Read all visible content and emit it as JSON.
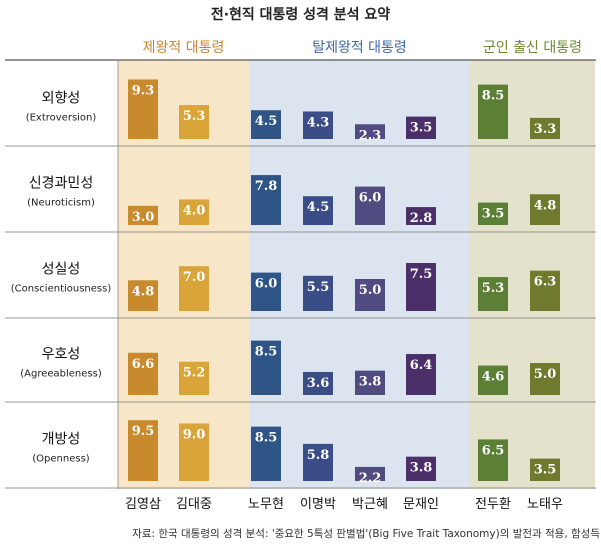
{
  "title": "전·현직 대통령 성격 분석 요약",
  "source": "자료: 한국 대통령의 성격 분석: '중요한 5특성 판별법'(Big Five Trait Taxonomy)의 발전과 적용, 함성득",
  "colors": {
    "group_bg": [
      "#f8e6c8",
      "#dbe4ef",
      "#e4e1cc"
    ],
    "group_title": [
      "#c8862e",
      "#3f6aa3",
      "#6e8a34"
    ],
    "bars": [
      "#c98a2d",
      "#d9a43a",
      "#2e5585",
      "#3b4d86",
      "#504b80",
      "#4b2f69",
      "#5b7f34",
      "#6f7a2e"
    ]
  },
  "chart_data": {
    "type": "bar",
    "title": "전·현직 대통령 성격 분석 요약",
    "groups": [
      {
        "name": "제왕적 대통령",
        "members": [
          "김영삼",
          "김대중"
        ]
      },
      {
        "name": "탈제왕적 대통령",
        "members": [
          "노무현",
          "이명박",
          "박근혜",
          "문재인"
        ]
      },
      {
        "name": "군인 출신 대통령",
        "members": [
          "전두환",
          "노태우"
        ]
      }
    ],
    "categories": [
      "김영삼",
      "김대중",
      "노무현",
      "이명박",
      "박근혜",
      "문재인",
      "전두환",
      "노태우"
    ],
    "rows": [
      {
        "label": "외향성",
        "sublabel": "(Extroversion)",
        "values": [
          9.3,
          5.3,
          4.5,
          4.3,
          2.3,
          3.5,
          8.5,
          3.3
        ]
      },
      {
        "label": "신경과민성",
        "sublabel": "(Neuroticism)",
        "values": [
          3.0,
          4.0,
          7.8,
          4.5,
          6.0,
          2.8,
          3.5,
          4.8
        ]
      },
      {
        "label": "성실성",
        "sublabel": "(Conscientiousness)",
        "values": [
          4.8,
          7.0,
          6.0,
          5.5,
          5.0,
          7.5,
          5.3,
          6.3
        ]
      },
      {
        "label": "우호성",
        "sublabel": "(Agreeableness)",
        "values": [
          6.6,
          5.2,
          8.5,
          3.6,
          3.8,
          6.4,
          4.6,
          5.0
        ]
      },
      {
        "label": "개방성",
        "sublabel": "(Openness)",
        "values": [
          9.5,
          9.0,
          8.5,
          5.8,
          2.2,
          3.8,
          6.5,
          3.5
        ]
      }
    ],
    "ylim": [
      0,
      10
    ]
  }
}
